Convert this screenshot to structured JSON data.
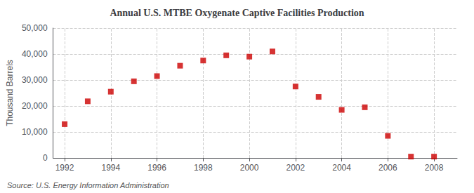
{
  "chart_data": {
    "type": "scatter",
    "title": "Annual U.S. MTBE Oxygenate Captive Facilities Production",
    "ylabel": "Thousand Barrels",
    "annotation": "Source: U.S. Energy Information Administration",
    "x": [
      1992,
      1993,
      1994,
      1995,
      1996,
      1997,
      1998,
      1999,
      2000,
      2001,
      2002,
      2003,
      2004,
      2005,
      2006,
      2007,
      2008
    ],
    "values": [
      13000,
      21800,
      25500,
      29500,
      31500,
      35500,
      37500,
      39500,
      39000,
      41000,
      27500,
      23500,
      18500,
      19500,
      8500,
      500,
      500
    ],
    "color": "#cc0000",
    "marker": "square",
    "xlim": [
      1991.5,
      2009.0
    ],
    "xticks": [
      1992,
      1994,
      1996,
      1998,
      2000,
      2002,
      2004,
      2006,
      2008
    ],
    "ylim": [
      0,
      50000
    ],
    "yticks": [
      0,
      {
        "value": 10000,
        "label": "10,000"
      },
      {
        "value": 20000,
        "label": "20,000"
      },
      {
        "value": 30000,
        "label": "30,000"
      },
      {
        "value": 40000,
        "label": "40,000"
      },
      {
        "value": 50000,
        "label": "50,000"
      }
    ],
    "grid": true
  }
}
